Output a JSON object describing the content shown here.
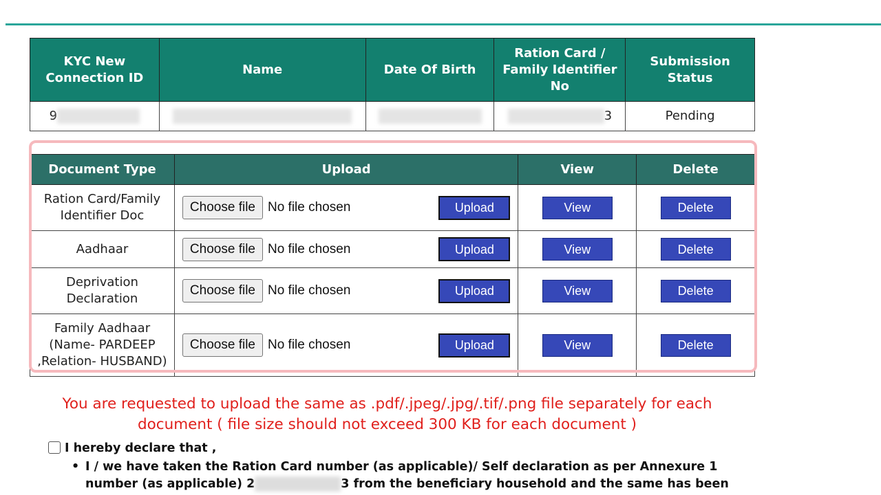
{
  "kyc_table": {
    "headers": [
      "KYC New Connection ID",
      "Name",
      "Date Of Birth",
      "Ration Card / Family Identifier No",
      "Submission Status"
    ],
    "row": {
      "id_visible": "9",
      "ration_visible": "3",
      "status": "Pending"
    }
  },
  "doc_table": {
    "headers": [
      "Document Type",
      "Upload",
      "View",
      "Delete"
    ],
    "choose_label": "Choose file",
    "no_file": "No file chosen",
    "upload_label": "Upload",
    "view_label": "View",
    "delete_label": "Delete",
    "rows": [
      {
        "type": "Ration Card/Family Identifier Doc"
      },
      {
        "type": "Aadhaar"
      },
      {
        "type": "Deprivation Declaration"
      },
      {
        "type": "Family Aadhaar (Name- PARDEEP ,Relation- HUSBAND)"
      }
    ]
  },
  "note": "You are requested to upload the same as .pdf/.jpeg/.jpg/.tif/.png file separately for each document ( file size should not exceed 300 KB for each document )",
  "declaration": {
    "label": "I hereby declare that ,",
    "bullet_part1": "I / we have taken the Ration Card number (as applicable)/ Self declaration as per Annexure 1 number (as applicable) 2",
    "bullet_part2": "3 from the beneficiary household and the same has been"
  },
  "colors": {
    "header": "#13806f",
    "button": "#3648b8",
    "note": "#e0201c",
    "highlight": "#f6b9bd"
  }
}
